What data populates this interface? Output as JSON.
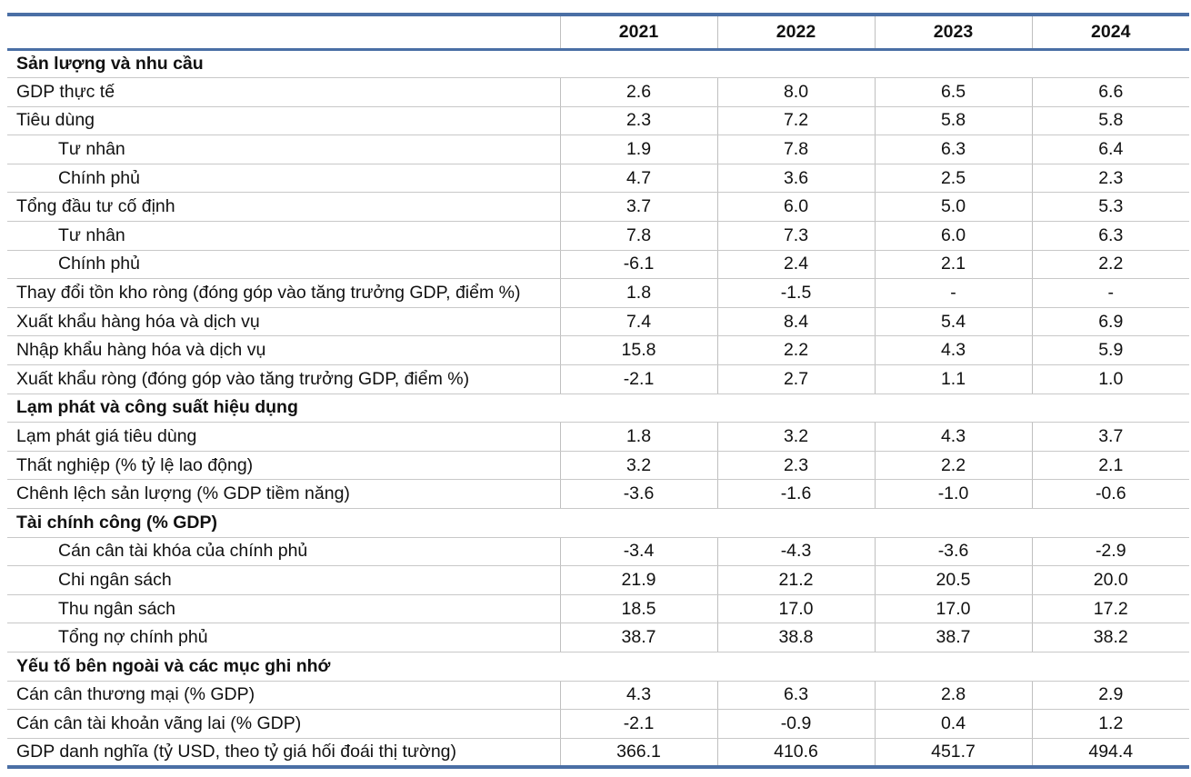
{
  "header": {
    "years": [
      "2021",
      "2022",
      "2023",
      "2024"
    ]
  },
  "sections": [
    {
      "title": "Sản lượng và nhu cầu",
      "rows": [
        {
          "label": "GDP thực tế",
          "indent": false,
          "values": [
            "2.6",
            "8.0",
            "6.5",
            "6.6"
          ]
        },
        {
          "label": "Tiêu dùng",
          "indent": false,
          "values": [
            "2.3",
            "7.2",
            "5.8",
            "5.8"
          ]
        },
        {
          "label": "Tư nhân",
          "indent": true,
          "values": [
            "1.9",
            "7.8",
            "6.3",
            "6.4"
          ]
        },
        {
          "label": "Chính phủ",
          "indent": true,
          "values": [
            "4.7",
            "3.6",
            "2.5",
            "2.3"
          ]
        },
        {
          "label": "Tổng đầu tư cố định",
          "indent": false,
          "values": [
            "3.7",
            "6.0",
            "5.0",
            "5.3"
          ]
        },
        {
          "label": "Tư nhân",
          "indent": true,
          "values": [
            "7.8",
            "7.3",
            "6.0",
            "6.3"
          ]
        },
        {
          "label": "Chính phủ",
          "indent": true,
          "values": [
            "-6.1",
            "2.4",
            "2.1",
            "2.2"
          ]
        },
        {
          "label": "Thay đổi tồn kho ròng (đóng góp vào tăng trưởng GDP, điểm %)",
          "indent": false,
          "values": [
            "1.8",
            "-1.5",
            "-",
            "-"
          ]
        },
        {
          "label": "Xuất khẩu hàng hóa và dịch vụ",
          "indent": false,
          "values": [
            "7.4",
            "8.4",
            "5.4",
            "6.9"
          ]
        },
        {
          "label": "Nhập khẩu hàng hóa và dịch vụ",
          "indent": false,
          "values": [
            "15.8",
            "2.2",
            "4.3",
            "5.9"
          ]
        },
        {
          "label": "Xuất khẩu ròng (đóng góp vào tăng trưởng GDP, điểm %)",
          "indent": false,
          "values": [
            "-2.1",
            "2.7",
            "1.1",
            "1.0"
          ]
        }
      ]
    },
    {
      "title": "Lạm phát và công suất hiệu dụng",
      "rows": [
        {
          "label": "Lạm phát giá tiêu dùng",
          "indent": false,
          "values": [
            "1.8",
            "3.2",
            "4.3",
            "3.7"
          ]
        },
        {
          "label": "Thất nghiệp (% tỷ lệ lao động)",
          "indent": false,
          "values": [
            "3.2",
            "2.3",
            "2.2",
            "2.1"
          ]
        },
        {
          "label": "Chênh lệch sản lượng (% GDP tiềm năng)",
          "indent": false,
          "values": [
            "-3.6",
            "-1.6",
            "-1.0",
            "-0.6"
          ]
        }
      ]
    },
    {
      "title": "Tài chính công (% GDP)",
      "rows": [
        {
          "label": "Cán cân tài khóa của chính phủ",
          "indent": true,
          "values": [
            "-3.4",
            "-4.3",
            "-3.6",
            "-2.9"
          ]
        },
        {
          "label": "Chi ngân sách",
          "indent": true,
          "values": [
            "21.9",
            "21.2",
            "20.5",
            "20.0"
          ]
        },
        {
          "label": "Thu ngân sách",
          "indent": true,
          "values": [
            "18.5",
            "17.0",
            "17.0",
            "17.2"
          ]
        },
        {
          "label": "Tổng nợ chính phủ",
          "indent": true,
          "values": [
            "38.7",
            "38.8",
            "38.7",
            "38.2"
          ]
        }
      ]
    },
    {
      "title": "Yếu tố bên ngoài và các mục ghi nhớ",
      "rows": [
        {
          "label": "Cán cân thương mại (% GDP)",
          "indent": false,
          "values": [
            "4.3",
            "6.3",
            "2.8",
            "2.9"
          ]
        },
        {
          "label": "Cán cân tài khoản vãng lai (% GDP)",
          "indent": false,
          "values": [
            "-2.1",
            "-0.9",
            "0.4",
            "1.2"
          ]
        },
        {
          "label": "GDP danh nghĩa (tỷ USD, theo tỷ giá hối đoái thị tường)",
          "indent": false,
          "values": [
            "366.1",
            "410.6",
            "451.7",
            "494.4"
          ]
        }
      ]
    }
  ]
}
